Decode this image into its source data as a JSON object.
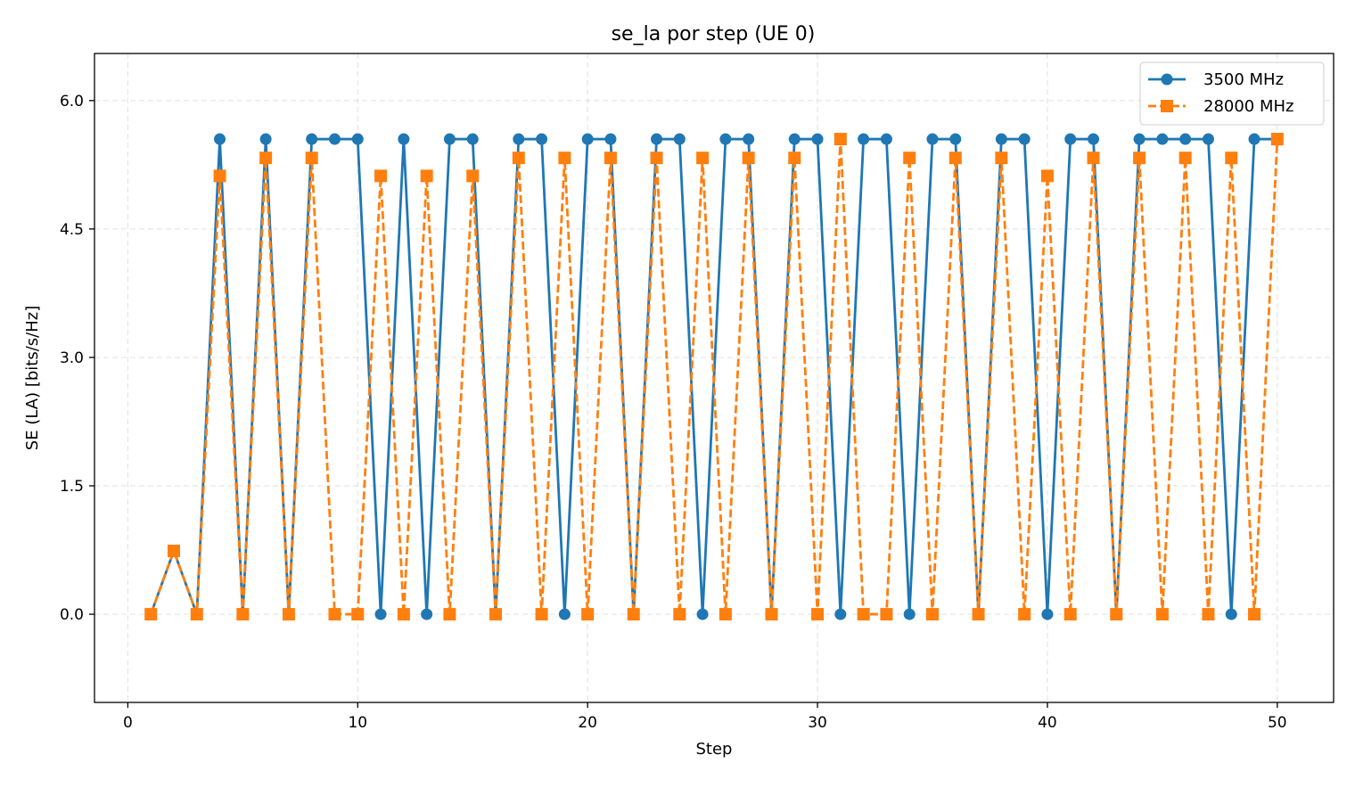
{
  "chart_data": {
    "type": "line",
    "title": "se_la por step (UE 0)",
    "xlabel": "Step",
    "ylabel": "SE (LA) [bits/s/Hz]",
    "xlim": [
      -1.45,
      52.45
    ],
    "ylim": [
      -1.03,
      6.55
    ],
    "xticks": [
      0,
      10,
      20,
      30,
      40,
      50
    ],
    "xtick_labels": [
      "0",
      "10",
      "20",
      "30",
      "40",
      "50"
    ],
    "yticks": [
      0.0,
      1.5,
      3.0,
      4.5,
      6.0
    ],
    "ytick_labels": [
      "0.0",
      "1.5",
      "3.0",
      "4.5",
      "6.0"
    ],
    "grid": true,
    "legend_position": "top-right",
    "x": [
      1,
      2,
      3,
      4,
      5,
      6,
      7,
      8,
      9,
      10,
      11,
      12,
      13,
      14,
      15,
      16,
      17,
      18,
      19,
      20,
      21,
      22,
      23,
      24,
      25,
      26,
      27,
      28,
      29,
      30,
      31,
      32,
      33,
      34,
      35,
      36,
      37,
      38,
      39,
      40,
      41,
      42,
      43,
      44,
      45,
      46,
      47,
      48,
      49,
      50
    ],
    "series": [
      {
        "name": "3500 MHz",
        "color": "#1f77b4",
        "marker": "circle",
        "line_style": "solid",
        "values": [
          0,
          0.74,
          0,
          5.55,
          0,
          5.55,
          0,
          5.55,
          5.55,
          5.55,
          0,
          5.55,
          0,
          5.55,
          5.55,
          0,
          5.55,
          5.55,
          0,
          5.55,
          5.55,
          0,
          5.55,
          5.55,
          0,
          5.55,
          5.55,
          0,
          5.55,
          5.55,
          0,
          5.55,
          5.55,
          0,
          5.55,
          5.55,
          0,
          5.55,
          5.55,
          0,
          5.55,
          5.55,
          0,
          5.55,
          5.55,
          5.55,
          5.55,
          0,
          5.55,
          5.55
        ]
      },
      {
        "name": "28000 MHz",
        "color": "#ff7f0e",
        "marker": "square",
        "line_style": "dashed",
        "values": [
          0,
          0.74,
          0,
          5.12,
          0,
          5.33,
          0,
          5.33,
          0,
          0,
          5.12,
          0,
          5.12,
          0,
          5.12,
          0,
          5.33,
          0,
          5.33,
          0,
          5.33,
          0,
          5.33,
          0,
          5.33,
          0,
          5.33,
          0,
          5.33,
          0,
          5.55,
          0,
          0,
          5.33,
          0,
          5.33,
          0,
          5.33,
          0,
          5.12,
          0,
          5.33,
          0,
          5.33,
          0,
          5.33,
          0,
          5.33,
          0,
          5.55
        ]
      }
    ]
  }
}
